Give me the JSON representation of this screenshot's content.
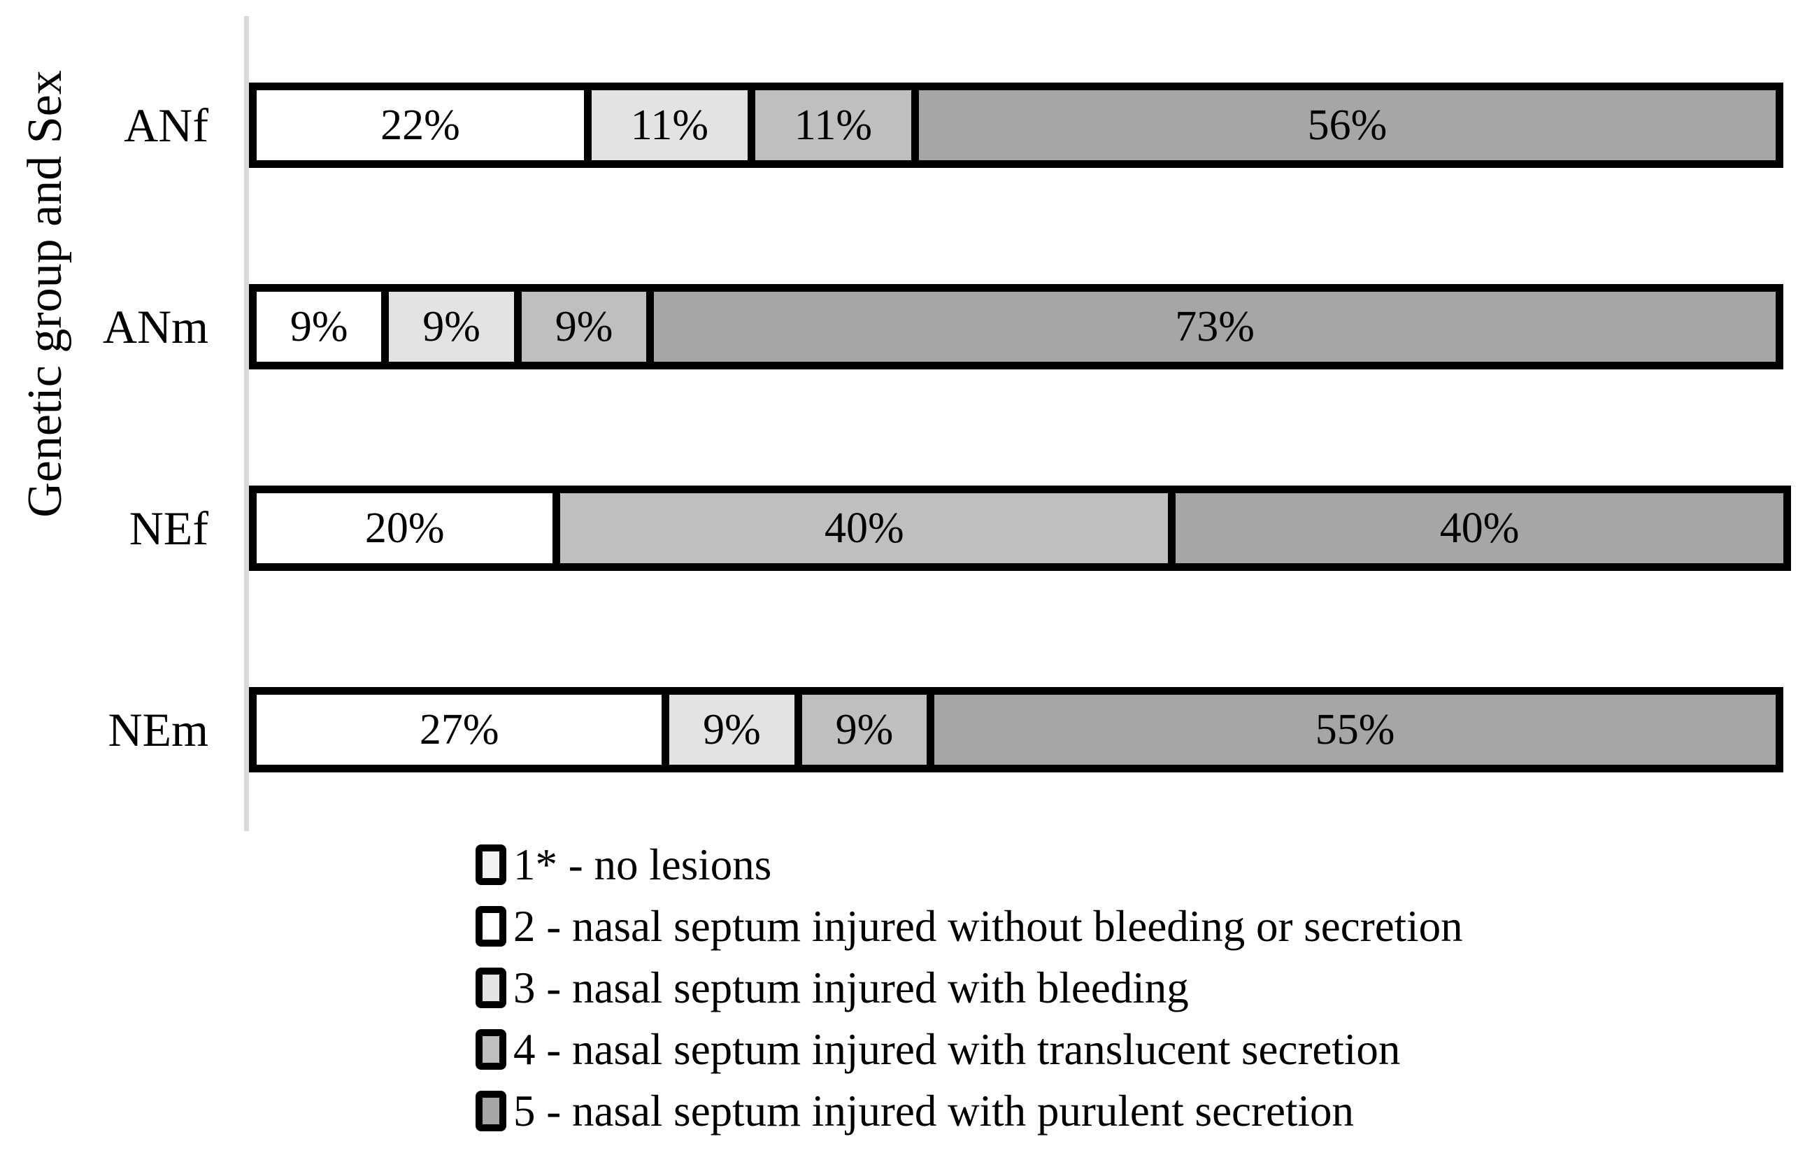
{
  "chart_data": {
    "type": "bar",
    "subtype": "stacked-horizontal",
    "title": "",
    "xlabel": "",
    "ylabel": "Genetic group and Sex",
    "xlim": [
      0,
      100
    ],
    "grid": false,
    "legend_position": "bottom",
    "value_suffix": "%",
    "axis_line_color": "#d9d9d9",
    "bar_border_color": "#000000",
    "categories": [
      "ANf",
      "ANm",
      "NEf",
      "NEm"
    ],
    "series": [
      {
        "name": "1* - no lesions",
        "color": "#f2f2f2",
        "values": [
          0,
          0,
          0,
          0
        ]
      },
      {
        "name": "2 - nasal septum injured without bleeding or secretion",
        "color": "#ffffff",
        "values": [
          22,
          9,
          20,
          27
        ]
      },
      {
        "name": "3 - nasal septum injured with bleeding",
        "color": "#e3e3e3",
        "values": [
          11,
          9,
          0,
          9
        ]
      },
      {
        "name": "4 - nasal septum injured with translucent secretion",
        "color": "#bfbfbf",
        "values": [
          11,
          9,
          40,
          9
        ]
      },
      {
        "name": "5 - nasal septum injured with purulent secretion",
        "color": "#a6a6a6",
        "values": [
          56,
          73,
          40,
          55
        ]
      }
    ]
  }
}
